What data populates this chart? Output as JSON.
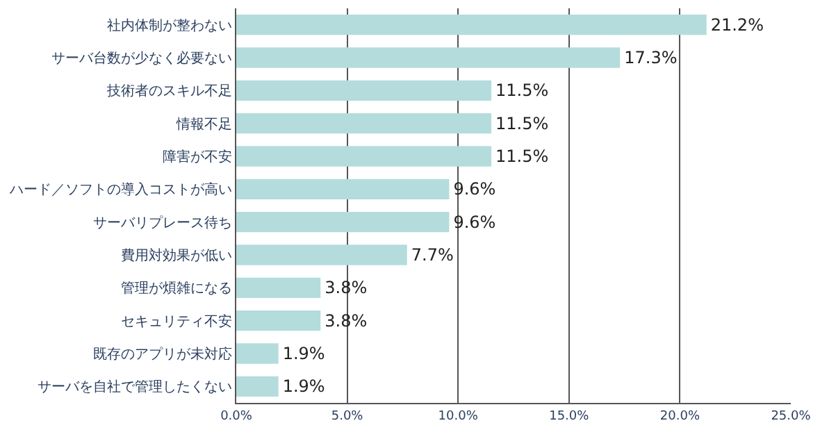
{
  "chart_data": {
    "type": "bar",
    "orientation": "horizontal",
    "categories": [
      "社内体制が整わない",
      "サーバ台数が少なく必要ない",
      "技術者のスキル不足",
      "情報不足",
      "障害が不安",
      "ハード／ソフトの導入コストが高い",
      "サーバリプレース待ち",
      "費用対効果が低い",
      "管理が煩雑になる",
      "セキュリティ不安",
      "既存のアプリが未対応",
      "サーバを自社で管理したくない"
    ],
    "values": [
      21.2,
      17.3,
      11.5,
      11.5,
      11.5,
      9.6,
      9.6,
      7.7,
      3.8,
      3.8,
      1.9,
      1.9
    ],
    "value_labels": [
      "21.2%",
      "17.3%",
      "11.5%",
      "11.5%",
      "11.5%",
      "9.6%",
      "9.6%",
      "7.7%",
      "3.8%",
      "3.8%",
      "1.9%",
      "1.9%"
    ],
    "color": "#b4dcdc",
    "xlim": [
      0,
      25
    ],
    "xticks": [
      {
        "value": 0,
        "label": "0.0%"
      },
      {
        "value": 5,
        "label": "5.0%"
      },
      {
        "value": 10,
        "label": "10.0%"
      },
      {
        "value": 15,
        "label": "15.0%"
      },
      {
        "value": 20,
        "label": "20.0%"
      },
      {
        "value": 25,
        "label": "25.0%"
      }
    ],
    "grid": "x",
    "legend": false
  }
}
